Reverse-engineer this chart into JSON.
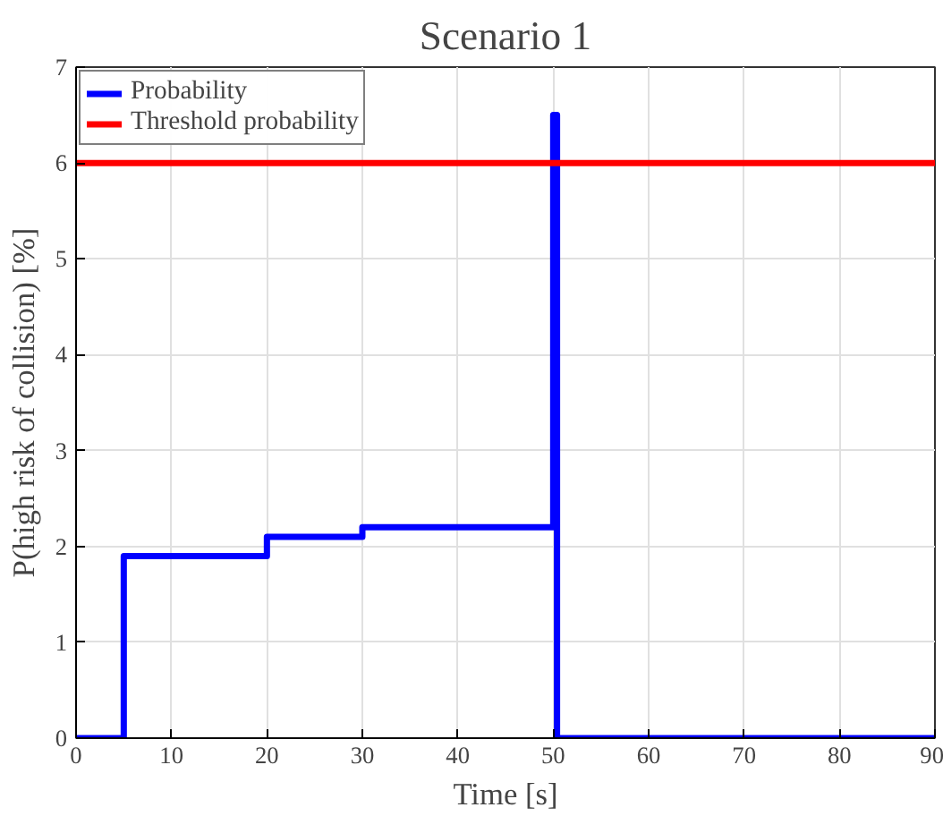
{
  "chart_data": {
    "type": "line",
    "title": "Scenario 1",
    "xlabel": "Time [s]",
    "ylabel": "P(high risk of collision) [%]",
    "series": [
      {
        "name": "Probability",
        "color": "#0000ff",
        "x": [
          0,
          5,
          5,
          20,
          20,
          30,
          30,
          50,
          50,
          50.4,
          50.4,
          90
        ],
        "values": [
          0,
          0,
          1.9,
          1.9,
          2.1,
          2.1,
          2.2,
          2.2,
          6.5,
          6.5,
          0,
          0
        ]
      },
      {
        "name": "Threshold probability",
        "color": "#ff0000",
        "x": [
          0,
          90
        ],
        "values": [
          6,
          6
        ]
      }
    ],
    "xlim": [
      0,
      90
    ],
    "ylim": [
      0,
      7
    ],
    "xticks": [
      0,
      10,
      20,
      30,
      40,
      50,
      60,
      70,
      80,
      90
    ],
    "yticks": [
      0,
      1,
      2,
      3,
      4,
      5,
      6,
      7
    ],
    "grid": true,
    "legend": "top left",
    "line_style": "solid",
    "marker": "none"
  }
}
